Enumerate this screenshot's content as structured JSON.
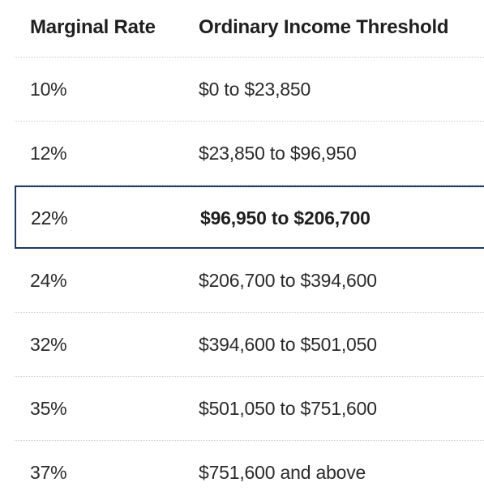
{
  "table": {
    "headers": {
      "rate": "Marginal Rate",
      "threshold": "Ordinary Income Threshold"
    },
    "rows": [
      {
        "rate": "10%",
        "threshold": "$0 to $23,850"
      },
      {
        "rate": "12%",
        "threshold": "$23,850 to $96,950"
      },
      {
        "rate": "22%",
        "threshold": "$96,950 to $206,700"
      },
      {
        "rate": "24%",
        "threshold": "$206,700 to $394,600"
      },
      {
        "rate": "32%",
        "threshold": "$394,600 to $501,050"
      },
      {
        "rate": "35%",
        "threshold": "$501,050 to $751,600"
      },
      {
        "rate": "37%",
        "threshold": "$751,600 and above"
      }
    ],
    "highlight_color": "#1e3a5f"
  }
}
